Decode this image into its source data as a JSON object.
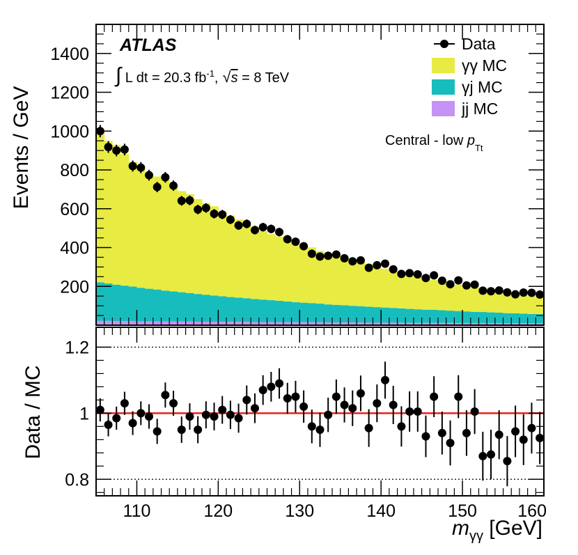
{
  "chart_data": [
    {
      "type": "stacked-histogram",
      "ylabel": "Events / GeV",
      "ylim": [
        0,
        1550
      ],
      "xlim": [
        105,
        160
      ],
      "bin_width": 1,
      "yticks": [
        200,
        400,
        600,
        800,
        1000,
        1200,
        1400
      ],
      "bin_edges_start": 105,
      "stack": [
        {
          "name": "jj MC",
          "color": "#c493f5",
          "values": [
            22,
            22,
            21,
            21,
            21,
            20,
            20,
            20,
            19,
            19,
            19,
            19,
            18,
            18,
            18,
            17,
            17,
            17,
            17,
            16,
            16,
            16,
            16,
            15,
            15,
            15,
            15,
            15,
            14,
            14,
            14,
            14,
            14,
            13,
            13,
            13,
            13,
            13,
            12,
            12,
            12,
            12,
            12,
            12,
            11,
            11,
            11,
            11,
            11,
            11,
            10,
            10,
            10,
            10,
            10
          ]
        },
        {
          "name": "γj MC",
          "color": "#17bdbd",
          "values": [
            199,
            193,
            188,
            183,
            178,
            173,
            168,
            164,
            159,
            155,
            151,
            147,
            143,
            139,
            135,
            132,
            128,
            125,
            122,
            119,
            116,
            113,
            110,
            107,
            104,
            101,
            99,
            96,
            93,
            91,
            89,
            86,
            84,
            82,
            80,
            78,
            76,
            74,
            72,
            70,
            68,
            67,
            65,
            63,
            62,
            60,
            58,
            57,
            55,
            54,
            52,
            51,
            50,
            48,
            47
          ]
        },
        {
          "name": "γγ MC",
          "color": "#e8eb42",
          "values": [
            779,
            735,
            720,
            679,
            643,
            612,
            594,
            582,
            572,
            545,
            521,
            509,
            489,
            472,
            460,
            438,
            420,
            403,
            384,
            371,
            353,
            340,
            331,
            313,
            302,
            291,
            287,
            271,
            263,
            258,
            246,
            238,
            228,
            220,
            209,
            200,
            191,
            184,
            177,
            170,
            163,
            155,
            149,
            143,
            136,
            131,
            126,
            120,
            114,
            109,
            105,
            100,
            96,
            92,
            88
          ]
        }
      ],
      "data": {
        "name": "Data",
        "values": [
          1000,
          918,
          900,
          905,
          820,
          812,
          773,
          712,
          762,
          719,
          641,
          643,
          596,
          604,
          574,
          570,
          544,
          514,
          522,
          490,
          505,
          496,
          480,
          443,
          430,
          407,
          368,
          354,
          358,
          364,
          345,
          329,
          334,
          296,
          309,
          317,
          288,
          264,
          268,
          262,
          243,
          257,
          229,
          211,
          231,
          205,
          209,
          178,
          175,
          179,
          169,
          159,
          168,
          167,
          158
        ]
      },
      "legend": [
        "Data",
        "γγ MC",
        "γj MC",
        "jj MC"
      ],
      "annotations": {
        "experiment": "ATLAS",
        "lumi_integral": "∫",
        "lumi_text": " L dt = 20.3 fb",
        "lumi_exp": "-1",
        "lumi_sqrt": "√",
        "lumi_s": "s",
        "lumi_energy": " = 8 TeV",
        "lumi_sep": ",",
        "category_prefix": "Central - low ",
        "category_p": "p",
        "category_sub": "Tt"
      }
    },
    {
      "type": "scatter-errorbar",
      "ylabel": "Data / MC",
      "xlabel_main": "m",
      "xlabel_sub": "γγ",
      "xlabel_unit": " [GeV]",
      "ylim": [
        0.75,
        1.26
      ],
      "xlim": [
        105,
        160
      ],
      "xticks": [
        110,
        120,
        130,
        140,
        150,
        160
      ],
      "yticks": [
        {
          "value": 0.8,
          "label": "0.8"
        },
        {
          "value": 1.0,
          "label": "1"
        },
        {
          "value": 1.2,
          "label": "1.2"
        }
      ],
      "reference_line": 1.0,
      "dotted_lines": [
        0.8,
        1.2
      ],
      "x": [
        105.5,
        106.5,
        107.5,
        108.5,
        109.5,
        110.5,
        111.5,
        112.5,
        113.5,
        114.5,
        115.5,
        116.5,
        117.5,
        118.5,
        119.5,
        120.5,
        121.5,
        122.5,
        123.5,
        124.5,
        125.5,
        126.5,
        127.5,
        128.5,
        129.5,
        130.5,
        131.5,
        132.5,
        133.5,
        134.5,
        135.5,
        136.5,
        137.5,
        138.5,
        139.5,
        140.5,
        141.5,
        142.5,
        143.5,
        144.5,
        145.5,
        146.5,
        147.5,
        148.5,
        149.5,
        150.5,
        151.5,
        152.5,
        153.5,
        154.5,
        155.5,
        156.5,
        157.5,
        158.5,
        159.5
      ],
      "y": [
        1.01,
        0.965,
        0.985,
        1.03,
        0.97,
        1.0,
        0.99,
        0.945,
        1.055,
        1.03,
        0.95,
        0.99,
        0.95,
        0.995,
        0.99,
        1.01,
        0.995,
        0.985,
        1.04,
        1.015,
        1.07,
        1.08,
        1.09,
        1.045,
        1.05,
        1.02,
        0.96,
        0.95,
        0.995,
        1.05,
        1.025,
        1.015,
        1.06,
        0.955,
        1.03,
        1.1,
        1.025,
        0.96,
        1.005,
        1.005,
        0.93,
        1.05,
        0.94,
        0.91,
        1.05,
        0.94,
        1.005,
        0.87,
        0.875,
        0.935,
        0.855,
        0.945,
        0.92,
        0.955,
        0.925
      ],
      "yerr": [
        0.035,
        0.035,
        0.035,
        0.035,
        0.036,
        0.036,
        0.037,
        0.038,
        0.038,
        0.038,
        0.04,
        0.04,
        0.041,
        0.041,
        0.042,
        0.042,
        0.043,
        0.044,
        0.044,
        0.045,
        0.045,
        0.045,
        0.046,
        0.047,
        0.048,
        0.049,
        0.051,
        0.052,
        0.052,
        0.052,
        0.053,
        0.054,
        0.054,
        0.057,
        0.057,
        0.056,
        0.058,
        0.061,
        0.061,
        0.061,
        0.063,
        0.062,
        0.065,
        0.068,
        0.065,
        0.069,
        0.068,
        0.074,
        0.075,
        0.074,
        0.076,
        0.078,
        0.077,
        0.077,
        0.079
      ]
    }
  ]
}
